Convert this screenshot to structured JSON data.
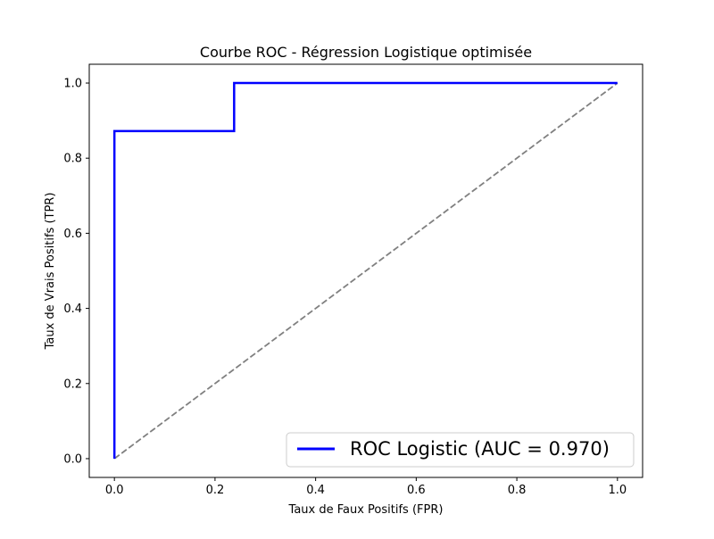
{
  "chart_data": {
    "type": "line",
    "title": "Courbe ROC - Régression Logistique optimisée",
    "xlabel": "Taux de Faux Positifs (FPR)",
    "ylabel": "Taux de Vrais Positifs (TPR)",
    "xlim": [
      -0.05,
      1.05
    ],
    "ylim": [
      -0.05,
      1.05
    ],
    "grid": false,
    "legend_position": "lower-right",
    "xticks": [
      0.0,
      0.2,
      0.4,
      0.6,
      0.8,
      1.0
    ],
    "xtick_labels": [
      "0.0",
      "0.2",
      "0.4",
      "0.6",
      "0.8",
      "1.0"
    ],
    "yticks": [
      0.0,
      0.2,
      0.4,
      0.6,
      0.8,
      1.0
    ],
    "ytick_labels": [
      "0.0",
      "0.2",
      "0.4",
      "0.6",
      "0.8",
      "1.0"
    ],
    "series": [
      {
        "name": "ROC Logistic (AUC = 0.970)",
        "color": "#0000ff",
        "style": "solid",
        "x": [
          0.0,
          0.0,
          0.0,
          0.238,
          0.238,
          1.0
        ],
        "y": [
          0.0,
          0.0,
          0.872,
          0.872,
          1.0,
          1.0
        ]
      },
      {
        "color": "#808080",
        "style": "dashed",
        "x": [
          0.0,
          1.0
        ],
        "y": [
          0.0,
          1.0
        ]
      }
    ]
  }
}
